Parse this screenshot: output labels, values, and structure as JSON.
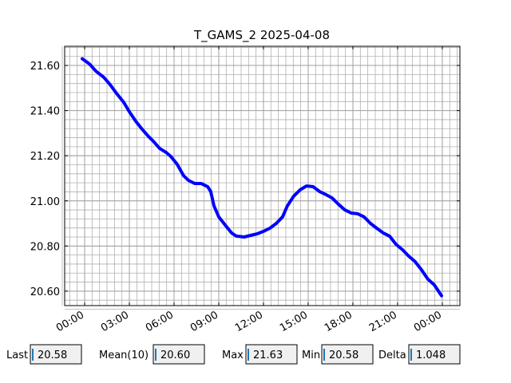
{
  "chart_data": {
    "type": "line",
    "title": "T_GAMS_2 2025-04-08",
    "x": [
      -0.16,
      0.32,
      0.75,
      1.29,
      1.71,
      2.14,
      2.62,
      3.0,
      3.43,
      3.86,
      4.28,
      4.61,
      5.03,
      5.46,
      5.78,
      6.21,
      6.64,
      6.96,
      7.39,
      7.82,
      8.25,
      8.46,
      8.68,
      9.0,
      9.43,
      9.86,
      10.18,
      10.71,
      11.14,
      11.57,
      12.0,
      12.43,
      12.86,
      13.28,
      13.6,
      14.03,
      14.46,
      14.89,
      15.32,
      15.75,
      16.18,
      16.6,
      17.03,
      17.46,
      17.89,
      18.32,
      18.75,
      19.18,
      19.6,
      20.03,
      20.46,
      20.89,
      21.32,
      21.75,
      22.17,
      22.6,
      23.03,
      23.46,
      23.95
    ],
    "series": [
      {
        "color": "#0000ff",
        "values": [
          21.63,
          21.607,
          21.575,
          21.547,
          21.515,
          21.476,
          21.437,
          21.395,
          21.353,
          21.317,
          21.286,
          21.264,
          21.233,
          21.215,
          21.197,
          21.162,
          21.112,
          21.091,
          21.077,
          21.077,
          21.063,
          21.042,
          20.978,
          20.929,
          20.893,
          20.858,
          20.844,
          20.84,
          20.847,
          20.854,
          20.865,
          20.879,
          20.9,
          20.929,
          20.978,
          21.021,
          21.049,
          21.066,
          21.063,
          21.042,
          21.028,
          21.013,
          20.985,
          20.96,
          20.946,
          20.943,
          20.929,
          20.9,
          20.879,
          20.858,
          20.844,
          20.808,
          20.784,
          20.755,
          20.731,
          20.695,
          20.653,
          20.628,
          20.58
        ]
      }
    ],
    "xlim": [
      -1.34,
      25.18
    ],
    "ylim": [
      20.536,
      21.685
    ],
    "xticks": [
      {
        "value": 0,
        "label": "00:00"
      },
      {
        "value": 3,
        "label": "03:00"
      },
      {
        "value": 6,
        "label": "06:00"
      },
      {
        "value": 9,
        "label": "09:00"
      },
      {
        "value": 12,
        "label": "12:00"
      },
      {
        "value": 15,
        "label": "15:00"
      },
      {
        "value": 18,
        "label": "18:00"
      },
      {
        "value": 21,
        "label": "21:00"
      },
      {
        "value": 24,
        "label": "00:00"
      }
    ],
    "yticks": [
      {
        "value": 20.6,
        "label": "20.60"
      },
      {
        "value": 20.8,
        "label": "20.80"
      },
      {
        "value": 21.0,
        "label": "21.00"
      },
      {
        "value": 21.2,
        "label": "21.20"
      },
      {
        "value": 21.4,
        "label": "21.40"
      },
      {
        "value": 21.6,
        "label": "21.60"
      }
    ],
    "grid": true
  },
  "stats": [
    {
      "label": "Last",
      "value": "20.58"
    },
    {
      "label": "Mean(10)",
      "value": "20.60"
    },
    {
      "label": "Max",
      "value": "21.63"
    },
    {
      "label": "Min",
      "value": "20.58"
    },
    {
      "label": "Delta",
      "value": "1.048"
    }
  ]
}
